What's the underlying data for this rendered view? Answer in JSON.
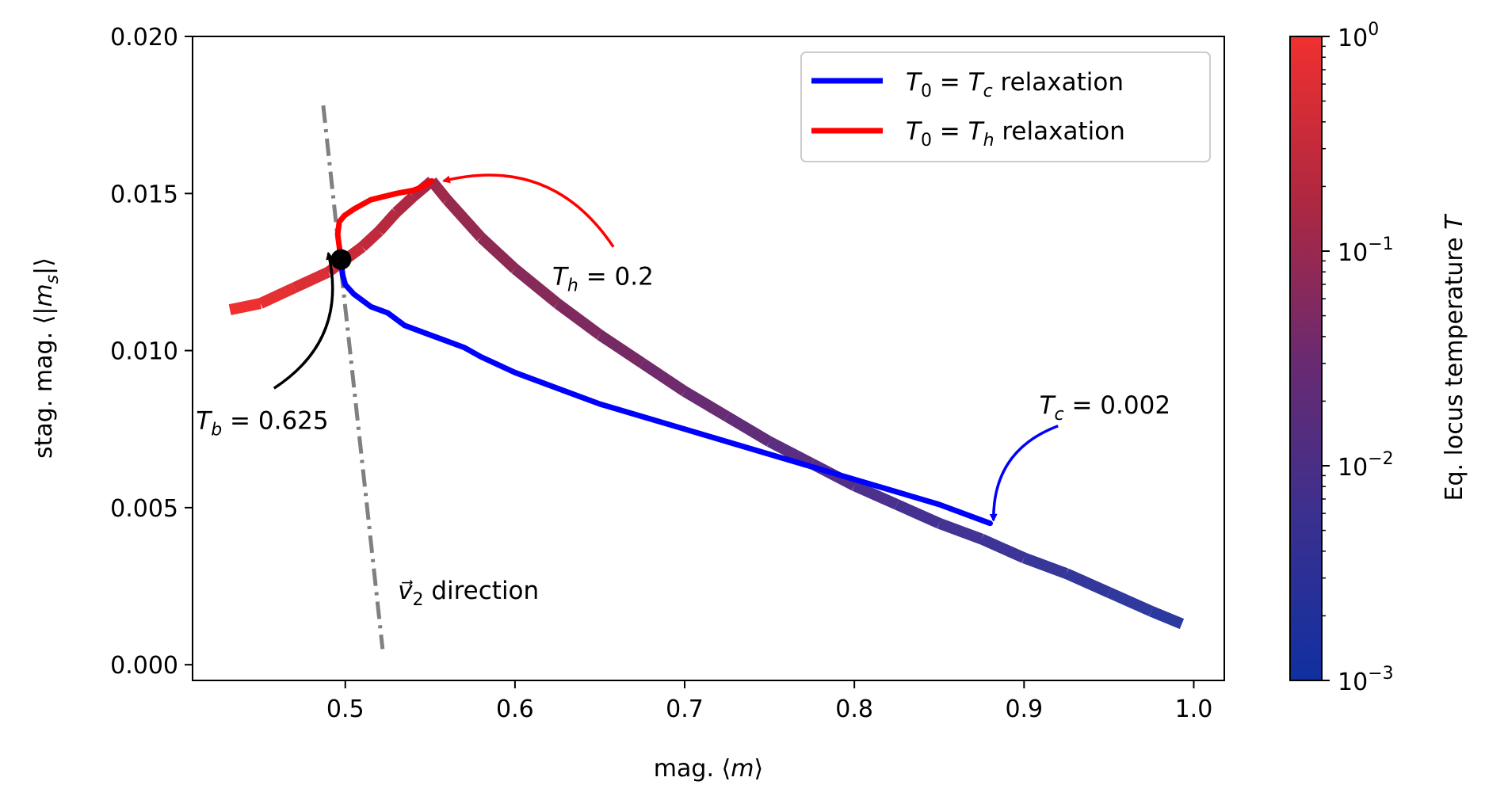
{
  "chart_data": {
    "type": "line",
    "xlabel": "mag. ⟨m⟩",
    "ylabel": "stag. mag. ⟨|m_s|⟩",
    "xlim": [
      0.41,
      1.018
    ],
    "ylim": [
      -0.0005,
      0.02
    ],
    "xticks": [
      0.5,
      0.6,
      0.7,
      0.8,
      0.9,
      1.0
    ],
    "xtick_labels": [
      "0.5",
      "0.6",
      "0.7",
      "0.8",
      "0.9",
      "1.0"
    ],
    "yticks": [
      0.0,
      0.005,
      0.01,
      0.015,
      0.02
    ],
    "ytick_labels": [
      "0.000",
      "0.005",
      "0.010",
      "0.015",
      "0.020"
    ],
    "grid": false,
    "legend_position": "top-right",
    "series": [
      {
        "name": "T₀ = T_c relaxation",
        "label_main": "T",
        "label_sub0": "0",
        "label_eq": " = ",
        "label_var": "T",
        "label_sub": "c",
        "label_rest": " relaxation",
        "color": "#0000ff",
        "points": [
          [
            0.4975,
            0.0128
          ],
          [
            0.4985,
            0.0124
          ],
          [
            0.5,
            0.0121
          ],
          [
            0.505,
            0.0118
          ],
          [
            0.51,
            0.0116
          ],
          [
            0.515,
            0.0114
          ],
          [
            0.525,
            0.0112
          ],
          [
            0.53,
            0.011
          ],
          [
            0.535,
            0.0108
          ],
          [
            0.55,
            0.0105
          ],
          [
            0.56,
            0.0103
          ],
          [
            0.57,
            0.0101
          ],
          [
            0.58,
            0.0098
          ],
          [
            0.6,
            0.0093
          ],
          [
            0.625,
            0.0088
          ],
          [
            0.65,
            0.0083
          ],
          [
            0.675,
            0.0079
          ],
          [
            0.7,
            0.0075
          ],
          [
            0.725,
            0.0071
          ],
          [
            0.75,
            0.0067
          ],
          [
            0.775,
            0.0063
          ],
          [
            0.8,
            0.0059
          ],
          [
            0.825,
            0.0055
          ],
          [
            0.85,
            0.0051
          ],
          [
            0.88,
            0.0045
          ]
        ]
      },
      {
        "name": "T₀ = T_h relaxation",
        "label_main": "T",
        "label_sub0": "0",
        "label_eq": " = ",
        "label_var": "T",
        "label_sub": "h",
        "label_rest": " relaxation",
        "color": "#ff0000",
        "points": [
          [
            0.4975,
            0.0129
          ],
          [
            0.4965,
            0.0133
          ],
          [
            0.4955,
            0.0137
          ],
          [
            0.4965,
            0.0141
          ],
          [
            0.4995,
            0.0143
          ],
          [
            0.505,
            0.0145
          ],
          [
            0.515,
            0.0148
          ],
          [
            0.53,
            0.015
          ],
          [
            0.54,
            0.0151
          ],
          [
            0.545,
            0.0152
          ],
          [
            0.551,
            0.0154
          ]
        ]
      }
    ],
    "equilibrium_locus": {
      "name": "Eq. locus (colored by T)",
      "colors": [
        "#ee3030",
        "#b02840",
        "#7a2a60",
        "#4a3090",
        "#2a3aa0"
      ],
      "points": [
        [
          0.432,
          0.0113
        ],
        [
          0.45,
          0.0115
        ],
        [
          0.47,
          0.012
        ],
        [
          0.49,
          0.0125
        ],
        [
          0.5,
          0.0129
        ],
        [
          0.51,
          0.0133
        ],
        [
          0.52,
          0.0138
        ],
        [
          0.53,
          0.0144
        ],
        [
          0.54,
          0.0149
        ],
        [
          0.551,
          0.0154
        ],
        [
          0.56,
          0.0148
        ],
        [
          0.58,
          0.0136
        ],
        [
          0.6,
          0.0126
        ],
        [
          0.625,
          0.0115
        ],
        [
          0.65,
          0.0105
        ],
        [
          0.675,
          0.0096
        ],
        [
          0.7,
          0.0087
        ],
        [
          0.725,
          0.0079
        ],
        [
          0.75,
          0.0071
        ],
        [
          0.775,
          0.0064
        ],
        [
          0.8,
          0.0057
        ],
        [
          0.825,
          0.0051
        ],
        [
          0.85,
          0.0045
        ],
        [
          0.875,
          0.004
        ],
        [
          0.9,
          0.0034
        ],
        [
          0.925,
          0.0029
        ],
        [
          0.95,
          0.0023
        ],
        [
          0.975,
          0.0017
        ],
        [
          0.993,
          0.0013
        ]
      ]
    },
    "v2_line": {
      "color": "#808080",
      "points": [
        [
          0.487,
          0.0178
        ],
        [
          0.522,
          0.0005
        ]
      ],
      "label_vec": "v⃗",
      "label_sub": "2",
      "label_rest": " direction",
      "label_at": [
        0.531,
        0.0021
      ]
    },
    "marker": {
      "x": 0.4975,
      "y": 0.0129,
      "color": "#000000"
    },
    "annotations": [
      {
        "id": "th",
        "var": "T",
        "sub": "h",
        "value": " = 0.2",
        "color": "#ff0000",
        "text_at": [
          0.622,
          0.0121
        ],
        "arrow_from": [
          0.658,
          0.0133
        ],
        "arrow_to": [
          0.558,
          0.0154
        ]
      },
      {
        "id": "tc",
        "var": "T",
        "sub": "c",
        "value": " = 0.002",
        "color": "#0000ff",
        "text_at": [
          0.909,
          0.008
        ],
        "arrow_from": [
          0.92,
          0.0076
        ],
        "arrow_to": [
          0.882,
          0.0046
        ]
      },
      {
        "id": "tb",
        "var": "T",
        "sub": "b",
        "value": " = 0.625",
        "color": "#000000",
        "text_at": [
          0.412,
          0.0075
        ],
        "arrow_from": [
          0.458,
          0.0088
        ],
        "arrow_to": [
          0.49,
          0.0131
        ]
      }
    ],
    "colorbar": {
      "label": "Eq. locus temperature T",
      "label_text": "Eq. locus temperature ",
      "label_var": "T",
      "scale": "log",
      "range": [
        0.001,
        1
      ],
      "ticks": [
        {
          "value": 1,
          "base": "10",
          "exp": "0"
        },
        {
          "value": 0.1,
          "base": "10",
          "exp": "−1"
        },
        {
          "value": 0.01,
          "base": "10",
          "exp": "−2"
        },
        {
          "value": 0.001,
          "base": "10",
          "exp": "−3"
        }
      ],
      "colors": [
        "#1030a0",
        "#3a3090",
        "#6a2a70",
        "#b02840",
        "#f03030"
      ]
    }
  }
}
